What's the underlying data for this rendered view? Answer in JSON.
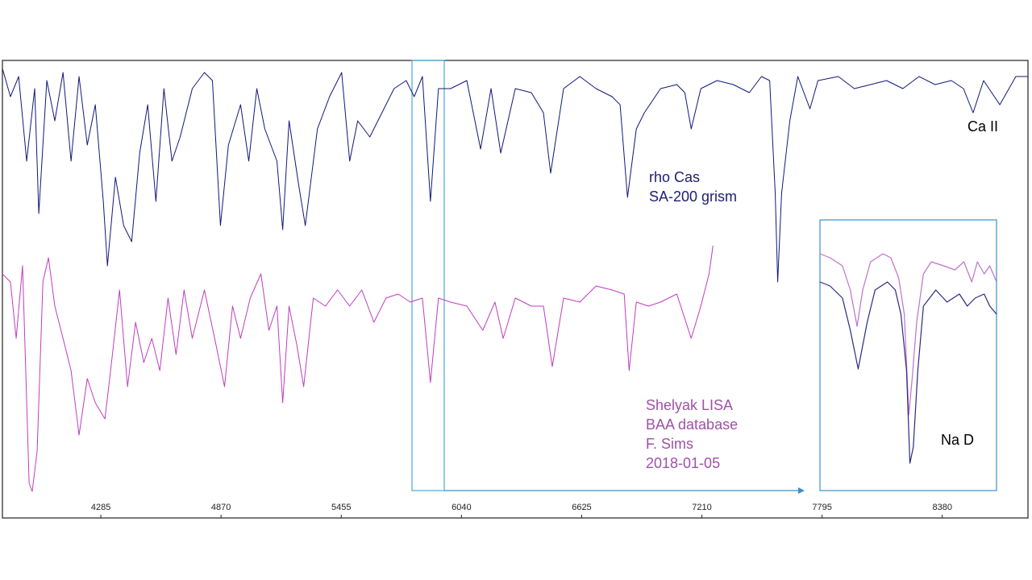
{
  "chart_data": [
    {
      "type": "line",
      "xlim": [
        3806,
        8797
      ],
      "ylim": [
        0,
        568
      ],
      "xticks": [
        4285,
        4870,
        5455,
        6040,
        6625,
        7210,
        7795,
        8380
      ],
      "series": [
        {
          "color": "#10187a",
          "x": [
            3806,
            3845,
            3885,
            3924,
            3963,
            3983,
            4022,
            4061,
            4101,
            4140,
            4179,
            4219,
            4258,
            4297,
            4317,
            4356,
            4396,
            4435,
            4474,
            4513,
            4553,
            4592,
            4631,
            4671,
            4730,
            4789,
            4828,
            4867,
            4906,
            4965,
            5005,
            5044,
            5083,
            5142,
            5170,
            5201,
            5248,
            5280,
            5339,
            5398,
            5457,
            5496,
            5535,
            5594,
            5653,
            5712,
            5771,
            5810,
            5850,
            5889,
            5928,
            5987,
            6066,
            6133,
            6184,
            6231,
            6302,
            6380,
            6439,
            6474,
            6537,
            6616,
            6695,
            6773,
            6812,
            6848,
            6891,
            6930,
            7009,
            7088,
            7127,
            7158,
            7205,
            7284,
            7363,
            7441,
            7500,
            7540,
            7567,
            7579,
            7598,
            7638,
            7677,
            7736,
            7775,
            7874,
            7952,
            8031,
            8109,
            8188,
            8267,
            8345,
            8424,
            8483,
            8530,
            8581,
            8660,
            8738,
            8797
          ],
          "values": [
            558,
            523,
            548,
            443,
            533,
            378,
            543,
            493,
            553,
            443,
            548,
            463,
            513,
            393,
            313,
            423,
            363,
            343,
            453,
            513,
            393,
            533,
            443,
            473,
            533,
            553,
            543,
            363,
            463,
            513,
            443,
            533,
            483,
            443,
            358,
            493,
            413,
            363,
            483,
            523,
            553,
            443,
            493,
            473,
            503,
            533,
            543,
            523,
            548,
            393,
            533,
            533,
            543,
            458,
            533,
            453,
            533,
            528,
            503,
            428,
            533,
            548,
            533,
            523,
            513,
            398,
            483,
            503,
            533,
            538,
            528,
            483,
            533,
            543,
            538,
            528,
            548,
            543,
            403,
            293,
            403,
            493,
            548,
            508,
            543,
            548,
            533,
            538,
            543,
            533,
            548,
            538,
            543,
            533,
            503,
            543,
            513,
            548,
            548
          ]
        },
        {
          "color": "#c03cc0",
          "x": [
            3806,
            3845,
            3873,
            3904,
            3936,
            3951,
            3975,
            4003,
            4030,
            4061,
            4101,
            4140,
            4179,
            4219,
            4258,
            4305,
            4337,
            4376,
            4415,
            4454,
            4494,
            4533,
            4572,
            4612,
            4651,
            4690,
            4730,
            4789,
            4847,
            4887,
            4926,
            4965,
            5012,
            5064,
            5103,
            5142,
            5170,
            5201,
            5240,
            5272,
            5319,
            5378,
            5437,
            5496,
            5555,
            5614,
            5673,
            5732,
            5791,
            5850,
            5889,
            5928,
            5987,
            6066,
            6144,
            6203,
            6243,
            6302,
            6380,
            6439,
            6482,
            6537,
            6616,
            6695,
            6773,
            6832,
            6856,
            6891,
            6950,
            7009,
            7088,
            7158,
            7205,
            7245,
            7264
          ],
          "values": [
            303,
            293,
            223,
            313,
            43,
            33,
            83,
            293,
            323,
            263,
            223,
            183,
            103,
            173,
            143,
            123,
            193,
            283,
            163,
            243,
            193,
            223,
            183,
            273,
            203,
            283,
            223,
            283,
            213,
            163,
            263,
            223,
            273,
            303,
            233,
            263,
            143,
            263,
            213,
            163,
            273,
            263,
            283,
            263,
            283,
            243,
            273,
            278,
            268,
            273,
            168,
            273,
            268,
            263,
            233,
            268,
            223,
            273,
            263,
            263,
            188,
            273,
            268,
            288,
            283,
            278,
            183,
            268,
            263,
            268,
            278,
            223,
            263,
            303,
            338
          ]
        }
      ],
      "annotations": [
        "Ca II",
        "rho Cas",
        "SA-200 grism",
        "Shelyak LISA",
        "BAA database",
        "F. Sims",
        "2018-01-05"
      ]
    },
    {
      "type": "line",
      "xlim": [
        5795,
        5952
      ],
      "ylim": [
        0,
        336
      ],
      "series": [
        {
          "color": "#c070c8",
          "x": [
            5795,
            5804,
            5815,
            5822,
            5828,
            5833,
            5840,
            5851,
            5858,
            5865,
            5870,
            5874,
            5877,
            5881,
            5887,
            5894,
            5905,
            5915,
            5923,
            5930,
            5935,
            5941,
            5946,
            5952
          ],
          "values": [
            294,
            289,
            279,
            249,
            204,
            249,
            284,
            294,
            289,
            264,
            219,
            94,
            139,
            209,
            269,
            284,
            279,
            274,
            284,
            259,
            284,
            269,
            279,
            259
          ]
        },
        {
          "color": "#2a2a80",
          "x": [
            5795,
            5804,
            5815,
            5822,
            5829,
            5837,
            5844,
            5855,
            5862,
            5867,
            5872,
            5875,
            5878,
            5882,
            5887,
            5898,
            5908,
            5919,
            5926,
            5933,
            5941,
            5946,
            5952
          ],
          "values": [
            259,
            254,
            239,
            199,
            151,
            209,
            249,
            259,
            249,
            219,
            149,
            34,
            54,
            149,
            229,
            249,
            234,
            244,
            229,
            239,
            244,
            229,
            219
          ]
        }
      ],
      "annotations": [
        "Na D"
      ]
    }
  ]
}
